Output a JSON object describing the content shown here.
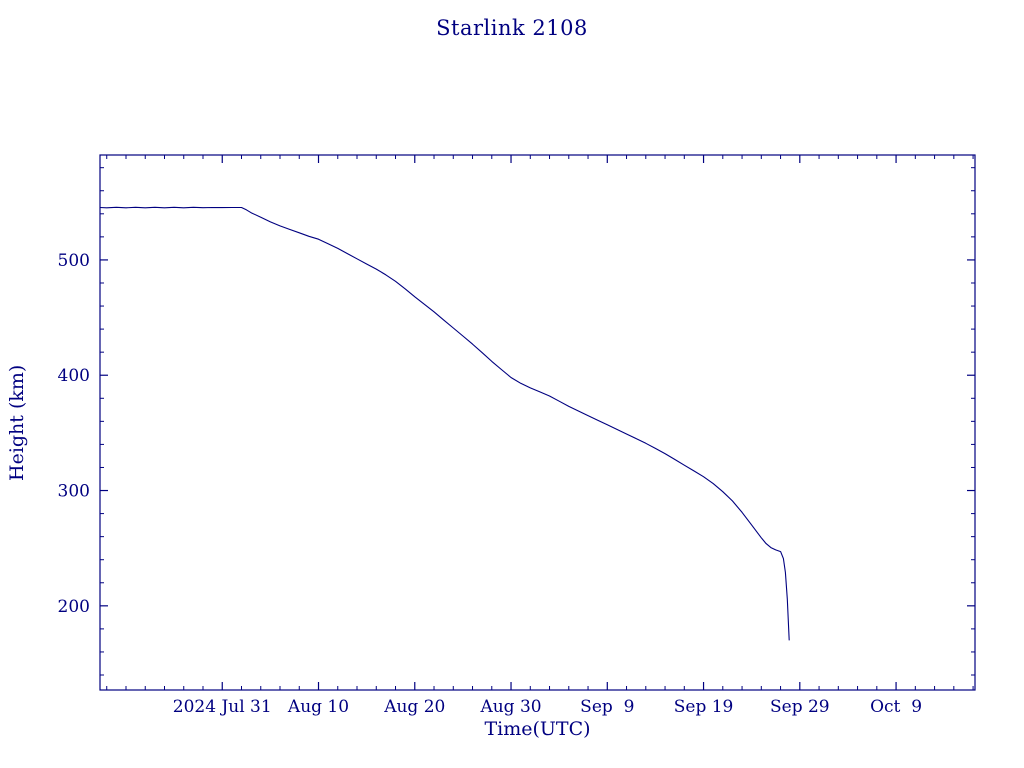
{
  "chart_data": {
    "type": "line",
    "title": "Starlink 2108",
    "xlabel": "Time(UTC)",
    "ylabel": "Height (km)",
    "series_name": "Starlink 2108 orbital height",
    "color": "#000080",
    "background": "#ffffff",
    "grid": false,
    "legend": "none",
    "x_unit": "days relative to 2024-07-31 (UTC)",
    "y_unit": "km",
    "xlim": [
      -12.7,
      78.2
    ],
    "ylim": [
      127,
      591
    ],
    "x_ticks": [
      {
        "label": "2024 Jul 31",
        "day": 0
      },
      {
        "label": "Aug 10",
        "day": 10
      },
      {
        "label": "Aug 20",
        "day": 20
      },
      {
        "label": "Aug 30",
        "day": 30
      },
      {
        "label": "Sep  9",
        "day": 40
      },
      {
        "label": "Sep 19",
        "day": 50
      },
      {
        "label": "Sep 29",
        "day": 60
      },
      {
        "label": "Oct  9",
        "day": 70
      }
    ],
    "y_ticks": [
      200,
      300,
      400,
      500
    ],
    "points": [
      [
        -12.7,
        545.5
      ],
      [
        -12,
        545.2
      ],
      [
        -11,
        545.6
      ],
      [
        -10,
        545.2
      ],
      [
        -9,
        545.6
      ],
      [
        -8,
        545.2
      ],
      [
        -7,
        545.6
      ],
      [
        -6,
        545.2
      ],
      [
        -5,
        545.6
      ],
      [
        -4,
        545.2
      ],
      [
        -3,
        545.6
      ],
      [
        -2,
        545.3
      ],
      [
        -1,
        545.5
      ],
      [
        0,
        545.4
      ],
      [
        1,
        545.5
      ],
      [
        2,
        545.5
      ],
      [
        2.5,
        543.5
      ],
      [
        3,
        541
      ],
      [
        4,
        537
      ],
      [
        5,
        533
      ],
      [
        6,
        529.5
      ],
      [
        7,
        526.5
      ],
      [
        8,
        523.5
      ],
      [
        9,
        520.5
      ],
      [
        10,
        518
      ],
      [
        11,
        514
      ],
      [
        12,
        510
      ],
      [
        13,
        505.5
      ],
      [
        14,
        501
      ],
      [
        15,
        496.5
      ],
      [
        16,
        492
      ],
      [
        17,
        487
      ],
      [
        18,
        481.5
      ],
      [
        19,
        475
      ],
      [
        20,
        468
      ],
      [
        21,
        461.5
      ],
      [
        22,
        455
      ],
      [
        23,
        448
      ],
      [
        24,
        441
      ],
      [
        25,
        434
      ],
      [
        26,
        427
      ],
      [
        27,
        419.5
      ],
      [
        28,
        412
      ],
      [
        29,
        405
      ],
      [
        30,
        398
      ],
      [
        31,
        393
      ],
      [
        32,
        389
      ],
      [
        33,
        385.5
      ],
      [
        34,
        382
      ],
      [
        35,
        377.5
      ],
      [
        36,
        373
      ],
      [
        37,
        369
      ],
      [
        38,
        365
      ],
      [
        39,
        361
      ],
      [
        40,
        357
      ],
      [
        41,
        353
      ],
      [
        42,
        349
      ],
      [
        43,
        345
      ],
      [
        44,
        341
      ],
      [
        45,
        336.5
      ],
      [
        46,
        332
      ],
      [
        47,
        327
      ],
      [
        48,
        322
      ],
      [
        49,
        317
      ],
      [
        50,
        312
      ],
      [
        51,
        306
      ],
      [
        52,
        299
      ],
      [
        53,
        291
      ],
      [
        54,
        281
      ],
      [
        55,
        270
      ],
      [
        56,
        259
      ],
      [
        56.5,
        254
      ],
      [
        57,
        250.5
      ],
      [
        57.5,
        248.5
      ],
      [
        58,
        247
      ],
      [
        58.3,
        241
      ],
      [
        58.5,
        229
      ],
      [
        58.7,
        206
      ],
      [
        58.9,
        170
      ]
    ]
  }
}
